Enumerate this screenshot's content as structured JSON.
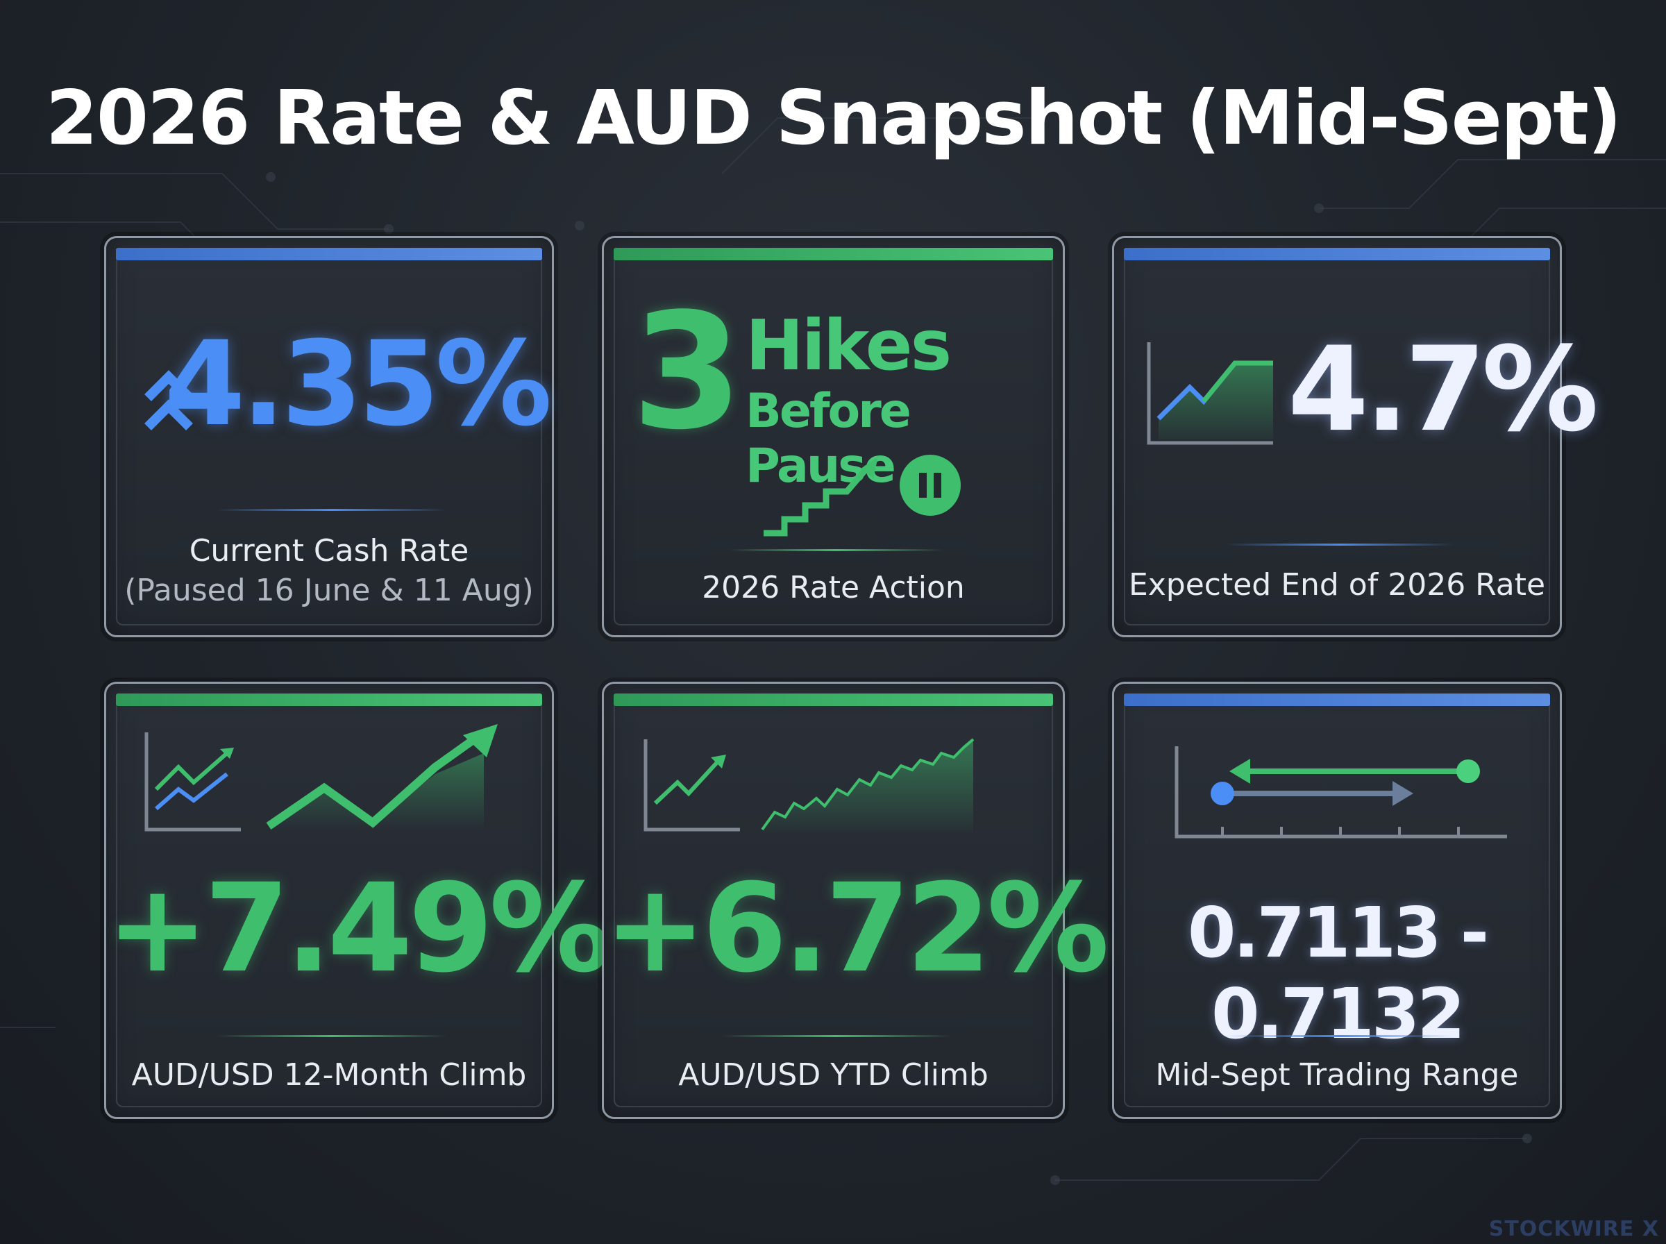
{
  "title": "2026 Rate & AUD Snapshot (Mid-Sept)",
  "colors": {
    "blue_accent": "#4b8ef5",
    "green_accent": "#3fbf6e",
    "white_value": "#eef2ff",
    "card_border": "#8f9aa6",
    "background": "#1f242b"
  },
  "cards": [
    {
      "value": "4.35%",
      "label": "Current Cash Rate",
      "sublabel": "(Paused 16 June & 11 Aug)",
      "icon": "double-chevron-up-icon",
      "accent": "blue"
    },
    {
      "number": "3",
      "line1": "Hikes",
      "line2": "Before Pause",
      "label": "2026 Rate Action",
      "icon": "step-arrow-pause-icon",
      "accent": "green"
    },
    {
      "value": "4.7%",
      "label": "Expected End of 2026 Rate",
      "icon": "line-chart-icon",
      "accent": "blue"
    },
    {
      "value": "+7.49%",
      "label": "AUD/USD 12-Month Climb",
      "icon": "zigzag-uptrend-icon",
      "accent": "green"
    },
    {
      "value": "+6.72%",
      "label": "AUD/USD YTD Climb",
      "icon": "area-uptrend-icon",
      "accent": "green"
    },
    {
      "value": "0.7113 - 0.7132",
      "label": "Mid-Sept Trading Range",
      "icon": "range-arrows-icon",
      "accent": "blue"
    }
  ],
  "watermark": "STOCKWIRE X"
}
